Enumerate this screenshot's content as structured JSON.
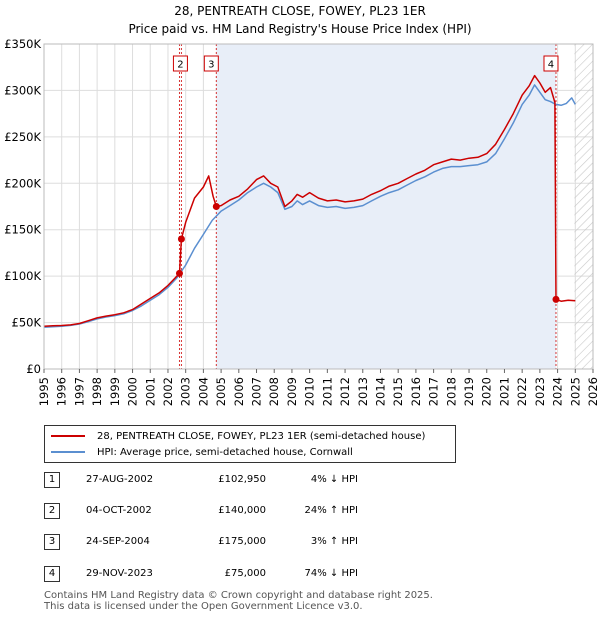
{
  "chart_data": {
    "type": "line",
    "title": "28, PENTREATH CLOSE, FOWEY, PL23 1ER",
    "subtitle": "Price paid vs. HM Land Registry's House Price Index (HPI)",
    "xlabel": "",
    "ylabel": "",
    "xlim": [
      1995,
      2026
    ],
    "ylim": [
      0,
      350000
    ],
    "x_ticks": [
      "1995",
      "1996",
      "1997",
      "1998",
      "1999",
      "2000",
      "2001",
      "2002",
      "2003",
      "2004",
      "2005",
      "2006",
      "2007",
      "2008",
      "2009",
      "2010",
      "2011",
      "2012",
      "2013",
      "2014",
      "2015",
      "2016",
      "2017",
      "2018",
      "2019",
      "2020",
      "2021",
      "2022",
      "2023",
      "2024",
      "2025",
      "2026"
    ],
    "y_ticks": [
      {
        "value": 0,
        "label": "£0"
      },
      {
        "value": 50000,
        "label": "£50K"
      },
      {
        "value": 100000,
        "label": "£100K"
      },
      {
        "value": 150000,
        "label": "£150K"
      },
      {
        "value": 200000,
        "label": "£200K"
      },
      {
        "value": 250000,
        "label": "£250K"
      },
      {
        "value": 300000,
        "label": "£300K"
      },
      {
        "value": 350000,
        "label": "£350K"
      }
    ],
    "grid": true,
    "shaded_spans": [
      [
        2004.73,
        2023.91
      ]
    ],
    "future_hatch_from": 2024.95,
    "series": [
      {
        "name": "28, PENTREATH CLOSE, FOWEY, PL23 1ER (semi-detached house)",
        "color": "#cc0000",
        "x": [
          1995.0,
          1995.5,
          1996.0,
          1996.5,
          1997.0,
          1997.5,
          1998.0,
          1998.5,
          1999.0,
          1999.5,
          2000.0,
          2000.5,
          2001.0,
          2001.5,
          2002.0,
          2002.3,
          2002.65,
          2002.76,
          2003.0,
          2003.5,
          2004.0,
          2004.3,
          2004.55,
          2004.73,
          2005.0,
          2005.5,
          2006.0,
          2006.5,
          2007.0,
          2007.4,
          2007.8,
          2008.2,
          2008.6,
          2009.0,
          2009.3,
          2009.6,
          2010.0,
          2010.5,
          2011.0,
          2011.5,
          2012.0,
          2012.5,
          2013.0,
          2013.5,
          2014.0,
          2014.5,
          2015.0,
          2015.5,
          2016.0,
          2016.5,
          2017.0,
          2017.5,
          2018.0,
          2018.5,
          2019.0,
          2019.5,
          2020.0,
          2020.5,
          2021.0,
          2021.5,
          2022.0,
          2022.4,
          2022.7,
          2023.0,
          2023.3,
          2023.6,
          2023.85,
          2023.91,
          2024.2,
          2024.6,
          2025.0
        ],
        "y": [
          46000,
          46500,
          46800,
          47500,
          49000,
          52000,
          55000,
          57000,
          58500,
          60500,
          64000,
          70000,
          76000,
          82000,
          90000,
          96000,
          102950,
          140000,
          158000,
          184000,
          196000,
          208000,
          186000,
          175000,
          176000,
          182000,
          186000,
          194000,
          204000,
          208000,
          200000,
          196000,
          175000,
          181000,
          188000,
          185000,
          190000,
          184000,
          181000,
          182000,
          180000,
          181000,
          183000,
          188000,
          192000,
          197000,
          200000,
          205000,
          210000,
          214000,
          220000,
          223000,
          226000,
          225000,
          227000,
          228000,
          232000,
          242000,
          258000,
          275000,
          295000,
          305000,
          316000,
          308000,
          298000,
          303000,
          287000,
          75000,
          73000,
          74000,
          73500
        ]
      },
      {
        "name": "HPI: Average price, semi-detached house, Cornwall",
        "color": "#5b8fd0",
        "x": [
          1995.0,
          1995.5,
          1996.0,
          1996.5,
          1997.0,
          1997.5,
          1998.0,
          1998.5,
          1999.0,
          1999.5,
          2000.0,
          2000.5,
          2001.0,
          2001.5,
          2002.0,
          2002.5,
          2003.0,
          2003.5,
          2004.0,
          2004.5,
          2005.0,
          2005.5,
          2006.0,
          2006.5,
          2007.0,
          2007.4,
          2007.8,
          2008.2,
          2008.6,
          2009.0,
          2009.3,
          2009.6,
          2010.0,
          2010.5,
          2011.0,
          2011.5,
          2012.0,
          2012.5,
          2013.0,
          2013.5,
          2014.0,
          2014.5,
          2015.0,
          2015.5,
          2016.0,
          2016.5,
          2017.0,
          2017.5,
          2018.0,
          2018.5,
          2019.0,
          2019.5,
          2020.0,
          2020.5,
          2021.0,
          2021.5,
          2022.0,
          2022.4,
          2022.7,
          2023.0,
          2023.3,
          2023.6,
          2023.9,
          2024.2,
          2024.5,
          2024.8,
          2025.0
        ],
        "y": [
          45000,
          45500,
          46000,
          47000,
          48500,
          51000,
          54000,
          56000,
          57500,
          59500,
          63000,
          68000,
          74000,
          80000,
          88000,
          98000,
          112000,
          130000,
          145000,
          160000,
          170000,
          176000,
          182000,
          190000,
          196000,
          200000,
          196000,
          190000,
          172000,
          175000,
          181000,
          177000,
          181000,
          176000,
          174000,
          175000,
          173000,
          174000,
          176000,
          181000,
          186000,
          190000,
          193000,
          198000,
          203000,
          207000,
          212000,
          216000,
          218000,
          218000,
          219000,
          220000,
          223000,
          232000,
          248000,
          265000,
          285000,
          295000,
          306000,
          298000,
          290000,
          288000,
          285000,
          284000,
          286000,
          292000,
          285000
        ]
      }
    ],
    "sales": [
      {
        "label": "1",
        "x": 2002.65,
        "y": 102950
      },
      {
        "label": "2",
        "x": 2002.76,
        "y": 140000
      },
      {
        "label": "3",
        "x": 2004.73,
        "y": 175000
      },
      {
        "label": "4",
        "x": 2023.91,
        "y": 75000
      }
    ]
  },
  "legend": {
    "property_label": "28, PENTREATH CLOSE, FOWEY, PL23 1ER (semi-detached house)",
    "hpi_label": "HPI: Average price, semi-detached house, Cornwall"
  },
  "transactions": [
    {
      "num": "1",
      "date": "27-AUG-2002",
      "price": "£102,950",
      "pct": "4% ↓ HPI"
    },
    {
      "num": "2",
      "date": "04-OCT-2002",
      "price": "£140,000",
      "pct": "24% ↑ HPI"
    },
    {
      "num": "3",
      "date": "24-SEP-2004",
      "price": "£175,000",
      "pct": "3% ↑ HPI"
    },
    {
      "num": "4",
      "date": "29-NOV-2023",
      "price": "£75,000",
      "pct": "74% ↓ HPI"
    }
  ],
  "footer": {
    "line1": "Contains HM Land Registry data © Crown copyright and database right 2025.",
    "line2": "This data is licensed under the Open Government Licence v3.0."
  },
  "colors": {
    "property": "#cc0000",
    "hpi": "#5b8fd0",
    "shade": "#e8eef8",
    "grid": "#dddddd"
  }
}
